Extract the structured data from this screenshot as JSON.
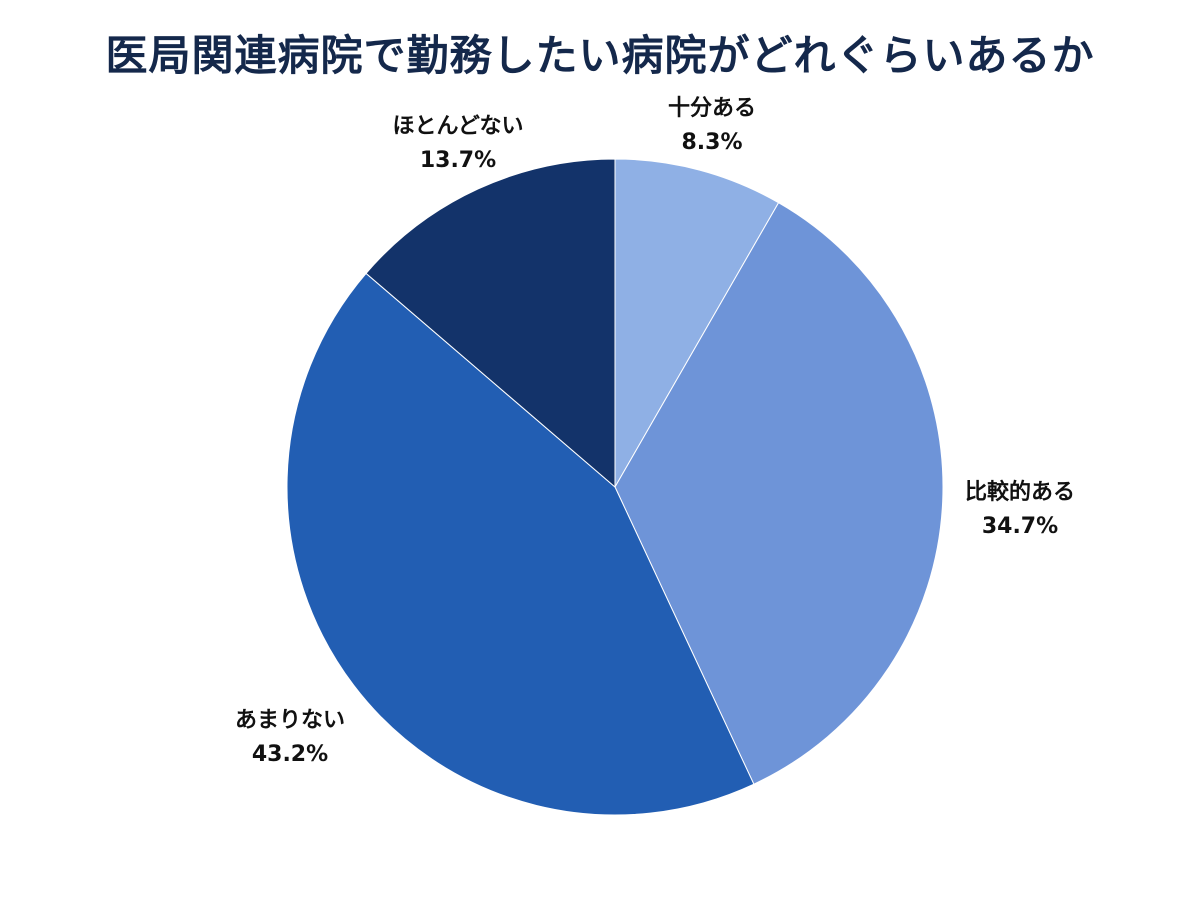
{
  "chart_data": {
    "type": "pie",
    "title": "医局関連病院で勤務したい病院がどれぐらいあるか",
    "categories": [
      "十分ある",
      "比較的ある",
      "あまりない",
      "ほとんどない"
    ],
    "values": [
      8.3,
      34.7,
      43.2,
      13.7
    ],
    "value_labels": [
      "8.3%",
      "34.7%",
      "43.2%",
      "13.7%"
    ],
    "colors": [
      "#8fb0e5",
      "#6e94d8",
      "#225eb3",
      "#13336a"
    ],
    "start_angle": "12 o'clock",
    "direction": "clockwise",
    "legend": "none (labels placed beside slices)"
  },
  "labels": [
    {
      "name": "十分ある",
      "value": "8.3%"
    },
    {
      "name": "比較的ある",
      "value": "34.7%"
    },
    {
      "name": "あまりない",
      "value": "43.2%"
    },
    {
      "name": "ほとんどない",
      "value": "13.7%"
    }
  ]
}
